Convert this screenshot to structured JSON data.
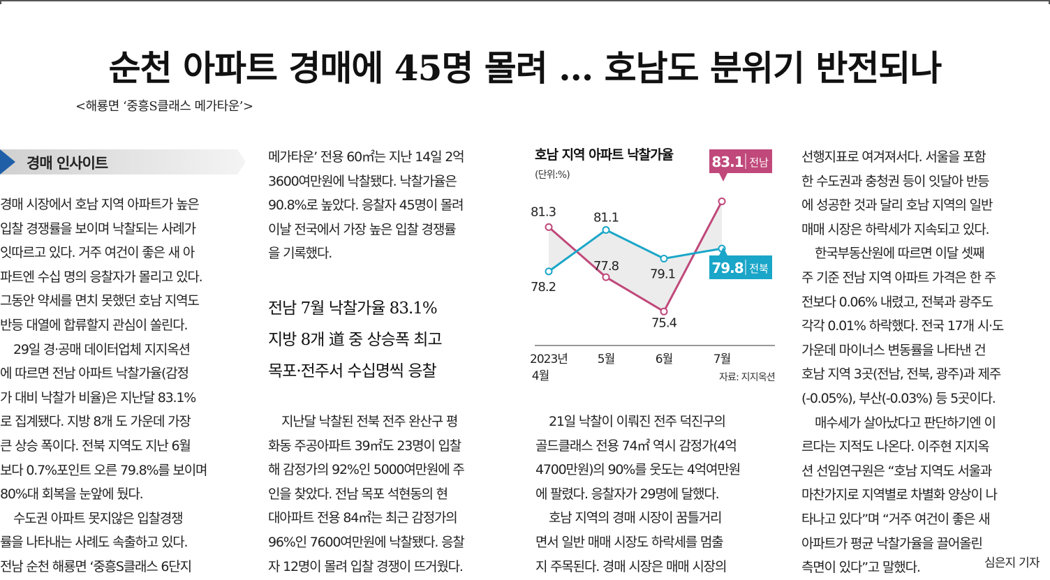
{
  "headline": "순천 아파트 경매에 45명 몰려 … 호남도 분위기 반전되나",
  "photo_caption": "<해룡면 ‘중흥S클래스 메가타운’>",
  "section_label": "경매 인사이트",
  "column1": [
    "경매 시장에서 호남 지역 아파트가 높은",
    "입찰 경쟁률을 보이며 낙찰되는 사례가",
    "잇따르고 있다. 거주 여건이 좋은 새 아",
    "파트엔 수십 명의 응찰자가 몰리고 있다.",
    "그동안 약세를 면치 못했던 호남 지역도",
    "반등 대열에 합류할지 관심이 쏠린다.",
    "  29일 경·공매 데이터업체 지지옥션",
    "에 따르면 전남 아파트 낙찰가율(감정",
    "가 대비 낙찰가 비율)은 지난달 83.1%",
    "로 집계됐다. 지방 8개 도 가운데 가장",
    "큰 상승 폭이다. 전북 지역도 지난 6월",
    "보다 0.7%포인트 오른 79.8%를 보이며",
    "80%대 회복을 눈앞에 뒀다.",
    "  수도권 아파트 못지않은 입찰경쟁",
    "률을 나타내는 사례도 속출하고 있다.",
    "전남 순천 해룡면 ‘중흥S클래스 6단지"
  ],
  "column2_top": [
    "메가타운’ 전용 60㎡는 지난 14일 2억",
    "3600여만원에 낙찰됐다. 낙찰가율은",
    "90.8%로 높았다. 응찰자 45명이 몰려",
    "이날 전국에서 가장 높은 입찰 경쟁률",
    "을 기록했다."
  ],
  "deck": [
    "전남 7월 낙찰가율 83.1%",
    "지방 8개 道 중 상승폭 최고",
    "목포·전주서 수십명씩 응찰"
  ],
  "column2_bottom": [
    "  지난달 낙찰된 전북 전주 완산구 평",
    "화동 주공아파트 39㎡도 23명이 입찰",
    "해 감정가의 92%인 5000여만원에 주",
    "인을 찾았다. 전남 목포 석현동의 현",
    "대아파트 전용 84㎡는 최근 감정가의",
    "96%인 7600여만원에 낙찰됐다. 응찰",
    "자 12명이 몰려 입찰 경쟁이 뜨거웠다."
  ],
  "column3": [
    "  21일 낙찰이 이뤄진 전주 덕진구의",
    "골드클래스 전용 74㎡ 역시 감정가(4억",
    "4700만원)의 90%를 웃도는 4억여만원",
    "에 팔렸다. 응찰자가 29명에 달했다.",
    "  호남 지역의 경매 시장이 꿈틀거리",
    "면서 일반 매매 시장도 하락세를 멈출",
    "지 주목된다. 경매 시장은 매매 시장의"
  ],
  "column4": [
    "선행지표로 여겨져서다. 서울을 포함",
    "한 수도권과 충청권 등이 잇달아 반등",
    "에 성공한 것과 달리 호남 지역의 일반",
    "매매 시장은 하락세가 지속되고 있다.",
    "  한국부동산원에 따르면 이달 셋째",
    "주 기준 전남 지역 아파트 가격은 한 주",
    "전보다 0.06% 내렸고, 전북과 광주도",
    "각각 0.01% 하락했다. 전국 17개 시·도",
    "가운데 마이너스 변동률을 나타낸 건",
    "호남 지역 3곳(전남, 전북, 광주)과 제주",
    "(-0.05%), 부산(-0.03%) 등 5곳이다.",
    "  매수세가 살아났다고 판단하기엔 이",
    "르다는 지적도 나온다. 이주현 지지옥",
    "션 선임연구원은 “호남 지역도 서울과",
    "마찬가지로 지역별로 차별화 양상이 나",
    "타나고 있다”며 “거주 여건이 좋은 새",
    "아파트가 평균 낙찰가율을 끌어올린",
    "측면이 있다”고 말했다."
  ],
  "byline": "심은지 기자",
  "chart_data": {
    "type": "line",
    "title": "호남 지역 아파트 낙찰가율",
    "unit": "(단위:%)",
    "source": "자료: 지지옥션",
    "categories": [
      {
        "line1": "2023년",
        "line2": "4월"
      },
      {
        "line1": "5월",
        "line2": ""
      },
      {
        "line1": "6월",
        "line2": ""
      },
      {
        "line1": "7월",
        "line2": ""
      }
    ],
    "ylim": [
      74,
      84
    ],
    "series": [
      {
        "name": "전남",
        "values": [
          81.3,
          77.8,
          75.4,
          83.1
        ],
        "color": "#c0487a",
        "labels": [
          "81.3",
          "77.8",
          "75.4",
          ""
        ],
        "callout": "83.1"
      },
      {
        "name": "전북",
        "values": [
          78.2,
          81.1,
          79.1,
          79.8
        ],
        "color": "#1aa6c8",
        "labels": [
          "78.2",
          "81.1",
          "79.1",
          ""
        ],
        "callout": "79.8"
      }
    ]
  }
}
